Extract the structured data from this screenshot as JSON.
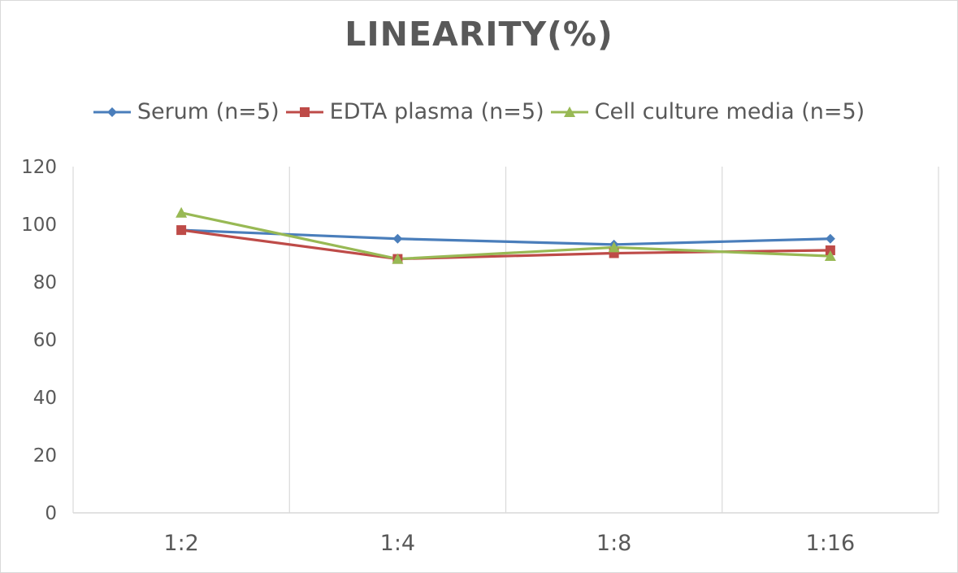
{
  "chart_data": {
    "type": "line",
    "title": "LINEARITY(%)",
    "xlabel": "",
    "ylabel": "",
    "categories": [
      "1:2",
      "1:4",
      "1:8",
      "1:16"
    ],
    "ylim": [
      0,
      120
    ],
    "yticks": [
      0,
      20,
      40,
      60,
      80,
      100,
      120
    ],
    "grid": "vertical",
    "legend_position": "top",
    "series": [
      {
        "name": "Serum (n=5)",
        "values": [
          98,
          95,
          93,
          95
        ],
        "color": "#4a7ebb",
        "marker": "diamond"
      },
      {
        "name": "EDTA plasma (n=5)",
        "values": [
          98,
          88,
          90,
          91
        ],
        "color": "#be4b48",
        "marker": "square"
      },
      {
        "name": "Cell culture media (n=5)",
        "values": [
          104,
          88,
          92,
          89
        ],
        "color": "#98b954",
        "marker": "triangle"
      }
    ]
  }
}
